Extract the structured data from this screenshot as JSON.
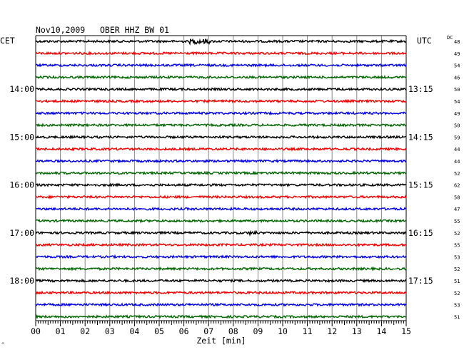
{
  "chart_data": {
    "type": "line",
    "title_date": "Nov10,2009",
    "title_station": "OBER HHZ BW 01",
    "left_timezone": "CET",
    "right_timezone": "UTC",
    "dc_header": "DC",
    "xlabel": "Zeit [min]",
    "xlim": [
      0,
      15
    ],
    "x_tick_labels": [
      "00",
      "01",
      "02",
      "03",
      "04",
      "05",
      "06",
      "07",
      "08",
      "09",
      "10",
      "11",
      "12",
      "13",
      "14",
      "15"
    ],
    "grid": true,
    "trace_colors": [
      "#000000",
      "#ee0000",
      "#0000dd",
      "#006600"
    ],
    "hour_labels_left": [
      "14:00",
      "15:00",
      "16:00",
      "17:00",
      "18:00"
    ],
    "hour_labels_right": [
      "13:15",
      "14:15",
      "15:15",
      "16:15",
      "17:15"
    ],
    "dc_values": [
      "48",
      "49",
      "54",
      "46",
      "50",
      "54",
      "49",
      "50",
      "59",
      "44",
      "44",
      "52",
      "62",
      "58",
      "47",
      "55",
      "52",
      "55",
      "53",
      "52",
      "51",
      "52",
      "53",
      "51"
    ],
    "corner_mark": "^"
  }
}
